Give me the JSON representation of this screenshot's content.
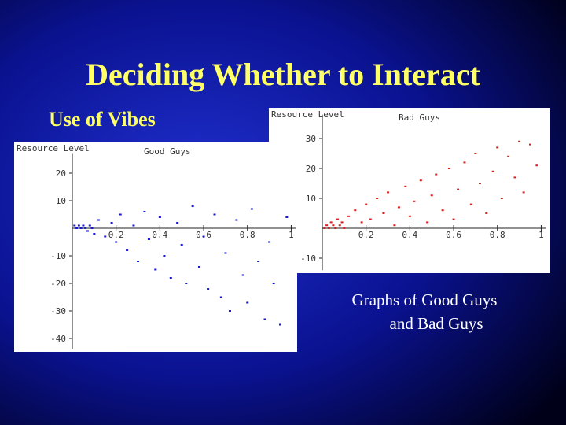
{
  "slide": {
    "title": "Deciding Whether to Interact",
    "subtitle": "Use of Vibes",
    "caption": "Graphs of Good Guys and Bad Guys"
  },
  "chart_data": [
    {
      "type": "scatter",
      "title": "Bad Guys",
      "y_label": "Resource Level",
      "color": "#d42020",
      "xlim": [
        0,
        1.02
      ],
      "ylim": [
        -14,
        38
      ],
      "xticks": [
        0.2,
        0.4,
        0.6,
        0.8,
        1
      ],
      "yticks": [
        30,
        20,
        10,
        -10
      ],
      "x": [
        0.01,
        0.02,
        0.03,
        0.04,
        0.05,
        0.06,
        0.07,
        0.08,
        0.09,
        0.1,
        0.12,
        0.15,
        0.18,
        0.2,
        0.22,
        0.25,
        0.28,
        0.3,
        0.33,
        0.35,
        0.38,
        0.4,
        0.42,
        0.45,
        0.48,
        0.5,
        0.52,
        0.55,
        0.58,
        0.6,
        0.62,
        0.65,
        0.68,
        0.7,
        0.72,
        0.75,
        0.78,
        0.8,
        0.82,
        0.85,
        0.88,
        0.9,
        0.92,
        0.95,
        0.98
      ],
      "values": [
        0,
        1,
        0,
        2,
        1,
        0,
        3,
        1,
        2,
        0,
        4,
        6,
        2,
        8,
        3,
        10,
        5,
        12,
        1,
        7,
        14,
        4,
        9,
        16,
        2,
        11,
        18,
        6,
        20,
        3,
        13,
        22,
        8,
        25,
        15,
        5,
        19,
        27,
        10,
        24,
        17,
        29,
        12,
        28,
        21
      ]
    },
    {
      "type": "scatter",
      "title": "Good Guys",
      "y_label": "Resource Level",
      "color": "#1a1acc",
      "xlim": [
        0,
        1.02
      ],
      "ylim": [
        -44,
        27
      ],
      "xticks": [
        0.2,
        0.4,
        0.6,
        0.8,
        1
      ],
      "yticks": [
        20,
        10,
        -10,
        -20,
        -30,
        -40
      ],
      "x": [
        0.01,
        0.02,
        0.03,
        0.04,
        0.05,
        0.06,
        0.07,
        0.08,
        0.09,
        0.1,
        0.12,
        0.15,
        0.18,
        0.2,
        0.22,
        0.25,
        0.28,
        0.3,
        0.33,
        0.35,
        0.38,
        0.4,
        0.42,
        0.45,
        0.48,
        0.5,
        0.52,
        0.55,
        0.58,
        0.6,
        0.62,
        0.65,
        0.68,
        0.7,
        0.72,
        0.75,
        0.78,
        0.8,
        0.82,
        0.85,
        0.88,
        0.9,
        0.92,
        0.95,
        0.98
      ],
      "values": [
        1,
        0,
        1,
        0,
        1,
        0,
        -1,
        1,
        0,
        -2,
        3,
        -3,
        2,
        -5,
        5,
        -8,
        1,
        -12,
        6,
        -4,
        -15,
        4,
        -10,
        -18,
        2,
        -6,
        -20,
        8,
        -14,
        -3,
        -22,
        5,
        -25,
        -9,
        -30,
        3,
        -17,
        -27,
        7,
        -12,
        -33,
        -5,
        -20,
        -35,
        4
      ]
    }
  ]
}
